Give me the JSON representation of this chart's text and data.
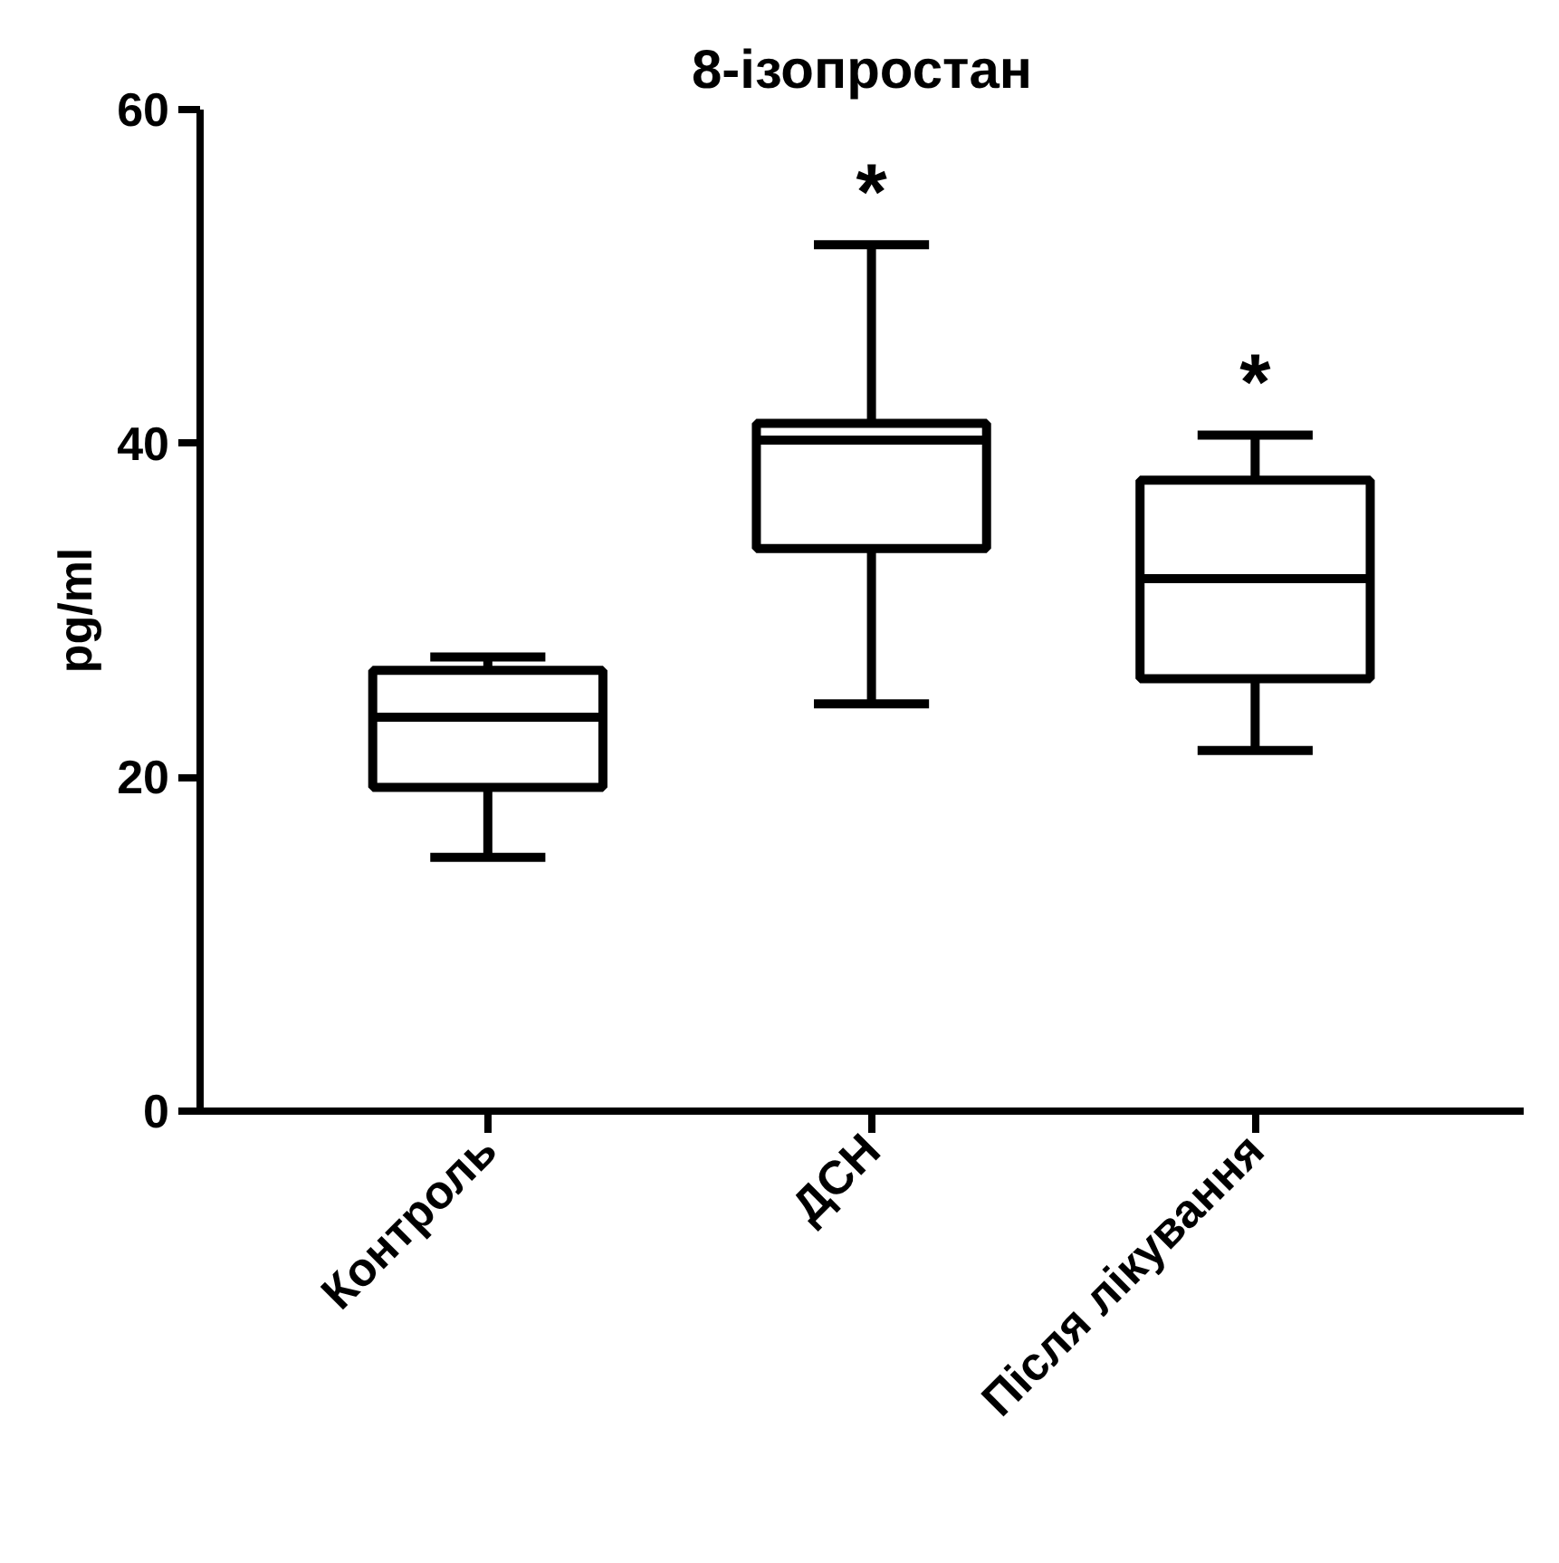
{
  "chart_data": {
    "type": "box",
    "title": "8-ізопростан",
    "ylabel": "pg/ml",
    "categories": [
      "Контроль",
      "ДСН",
      "Після лікування"
    ],
    "boxes": [
      {
        "low": 15.2,
        "q1": 19.4,
        "median": 23.6,
        "q3": 26.4,
        "high": 27.2
      },
      {
        "low": 24.4,
        "q1": 33.7,
        "median": 40.2,
        "q3": 41.2,
        "high": 51.9
      },
      {
        "low": 21.6,
        "q1": 25.9,
        "median": 31.9,
        "q3": 37.8,
        "high": 40.5
      }
    ],
    "color": "#000000",
    "ylim": [
      0,
      60
    ],
    "yticks": [
      0,
      20,
      40,
      60
    ],
    "grid": false,
    "annotations": [
      "*",
      "*"
    ]
  }
}
